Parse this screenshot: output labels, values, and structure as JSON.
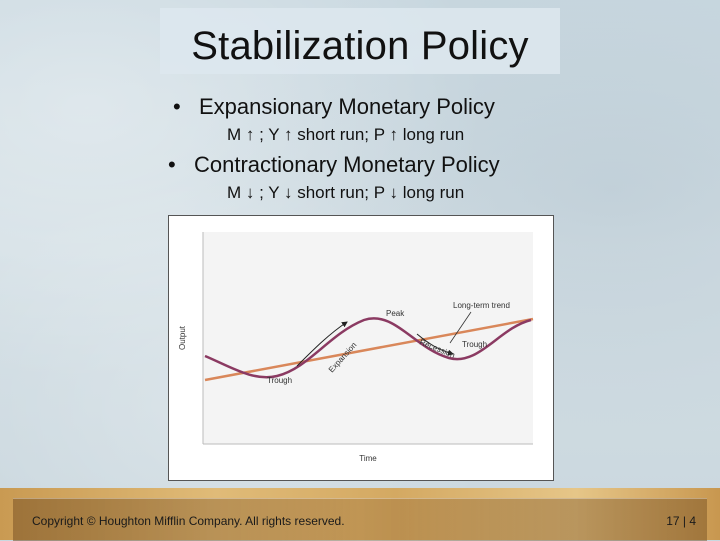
{
  "slide": {
    "title": "Stabilization Policy",
    "bullets": [
      {
        "heading": "Expansionary Monetary Policy",
        "detail": "M ↑ ; Y ↑ short run; P ↑ long run"
      },
      {
        "heading": "Contractionary Monetary Policy",
        "detail": "M ↓ ; Y ↓ short run; P ↓ long run"
      }
    ],
    "bullet_symbol": "•"
  },
  "chart_data": {
    "type": "line",
    "xlabel": "Time",
    "ylabel": "Output",
    "series": [
      {
        "name": "Long-term trend",
        "kind": "trend",
        "color": "#d9875a"
      },
      {
        "name": "",
        "kind": "business-cycle",
        "color": "#8b3a62"
      }
    ],
    "annotations": [
      "Peak",
      "Trough",
      "Trough",
      "Expansion",
      "Recession",
      "Long-term trend"
    ],
    "grid": false
  },
  "footer": {
    "copyright": "Copyright © Houghton Mifflin Company. All rights reserved.",
    "page": "17 | 4"
  }
}
